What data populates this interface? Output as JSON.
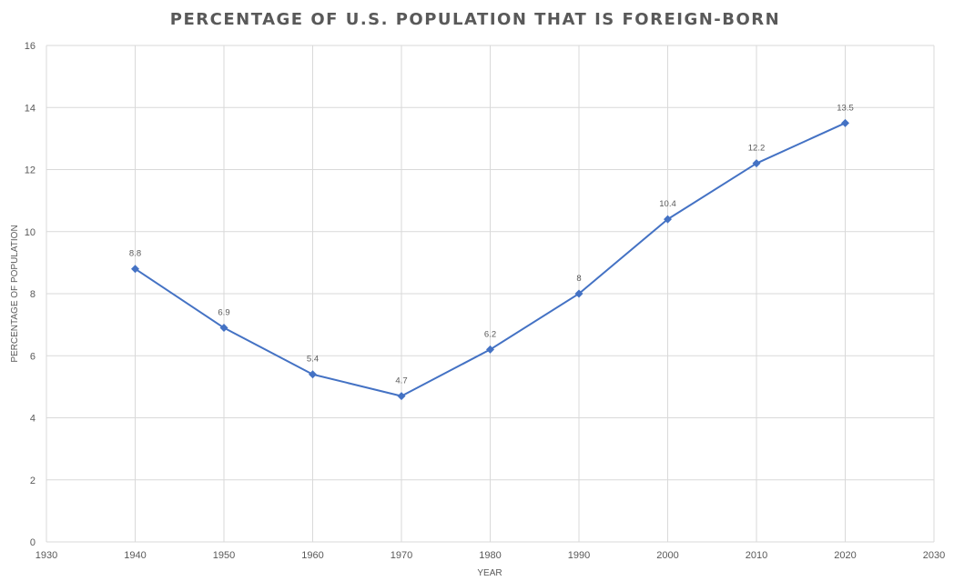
{
  "chart_data": {
    "type": "scatter",
    "title": "PERCENTAGE OF U.S. POPULATION THAT IS FOREIGN-BORN",
    "xlabel": "YEAR",
    "ylabel": "PERCENTAGE OF POPULATION",
    "xlim": [
      1930,
      2030
    ],
    "ylim": [
      0,
      16
    ],
    "x_ticks": [
      1930,
      1940,
      1950,
      1960,
      1970,
      1980,
      1990,
      2000,
      2010,
      2020,
      2030
    ],
    "y_ticks": [
      0,
      2,
      4,
      6,
      8,
      10,
      12,
      14,
      16
    ],
    "grid": true,
    "series": [
      {
        "color": "#4472c4",
        "marker": "diamond",
        "connected": true,
        "points": [
          {
            "x": 1940,
            "y": 8.8,
            "label": "8.8"
          },
          {
            "x": 1950,
            "y": 6.9,
            "label": "6.9"
          },
          {
            "x": 1960,
            "y": 5.4,
            "label": "5.4"
          },
          {
            "x": 1970,
            "y": 4.7,
            "label": "4.7"
          },
          {
            "x": 1980,
            "y": 6.2,
            "label": "6.2"
          },
          {
            "x": 1990,
            "y": 8,
            "label": "8"
          },
          {
            "x": 2000,
            "y": 10.4,
            "label": "10.4"
          },
          {
            "x": 2010,
            "y": 12.2,
            "label": "12.2"
          },
          {
            "x": 2020,
            "y": 13.5,
            "label": "13.5"
          }
        ]
      }
    ]
  }
}
